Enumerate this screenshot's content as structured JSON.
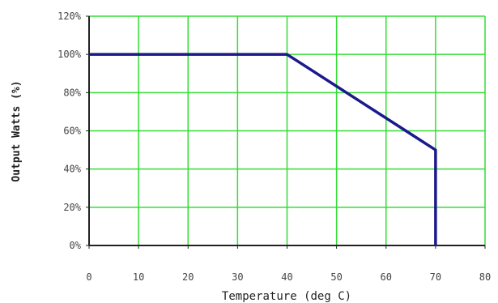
{
  "chart_data": {
    "type": "line",
    "title": "",
    "xlabel": "Temperature (deg C)",
    "ylabel": "Output Watts (%)",
    "xlim": [
      0,
      80
    ],
    "ylim": [
      0,
      120
    ],
    "x_ticks": [
      "0",
      "10",
      "20",
      "30",
      "40",
      "50",
      "60",
      "70",
      "80"
    ],
    "y_ticks": [
      "0%",
      "20%",
      "40%",
      "60%",
      "80%",
      "100%",
      "120%"
    ],
    "grid": true,
    "grid_color": "#33dd33",
    "series": [
      {
        "color": "#1a1a8c",
        "points": [
          {
            "x": 0,
            "y": 100
          },
          {
            "x": 40,
            "y": 100
          },
          {
            "x": 70,
            "y": 50
          },
          {
            "x": 70,
            "y": 0
          }
        ]
      }
    ]
  }
}
